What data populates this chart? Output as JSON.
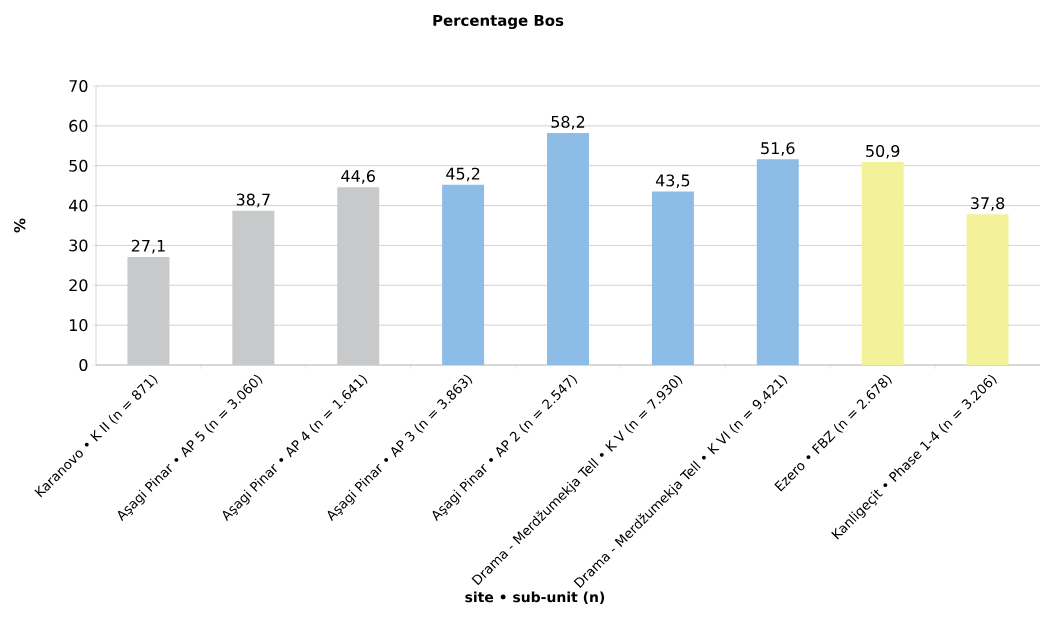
{
  "chart_data": {
    "type": "bar",
    "title": "Percentage Bos",
    "xlabel": "site • sub-unit (n)",
    "ylabel": "%",
    "categories": [
      "Karanovo • K II (n = 871)",
      "Aşagi Pinar • AP 5 (n = 3.060)",
      "Aşagi Pinar • AP 4 (n = 1.641)",
      "Aşagi Pinar • AP 3 (n = 3.863)",
      "Aşagi Pinar • AP 2 (n = 2.547)",
      "Drama - Merdžumekja Tell • K V (n = 7.930)",
      "Drama - Merdžumekja Tell • K VI (n = 9.421)",
      "Ezero • FBZ (n = 2.678)",
      "Kanligeçit • Phase 1-4 (n = 3.206)"
    ],
    "values": [
      27.1,
      38.7,
      44.6,
      45.2,
      58.2,
      43.5,
      51.6,
      50.9,
      37.8
    ],
    "value_labels": [
      "27,1",
      "38,7",
      "44,6",
      "45,2",
      "58,2",
      "43,5",
      "51,6",
      "50,9",
      "37,8"
    ],
    "colors": [
      "#c8c9ca",
      "#c8c9ca",
      "#c8c9ca",
      "#8dbde6",
      "#8dbde6",
      "#8dbde6",
      "#8dbde6",
      "#f3f19a",
      "#f3f19a"
    ],
    "ylim": [
      0,
      70
    ],
    "yticks": [
      0,
      10,
      20,
      30,
      40,
      50,
      60,
      70
    ],
    "grid": "y"
  }
}
